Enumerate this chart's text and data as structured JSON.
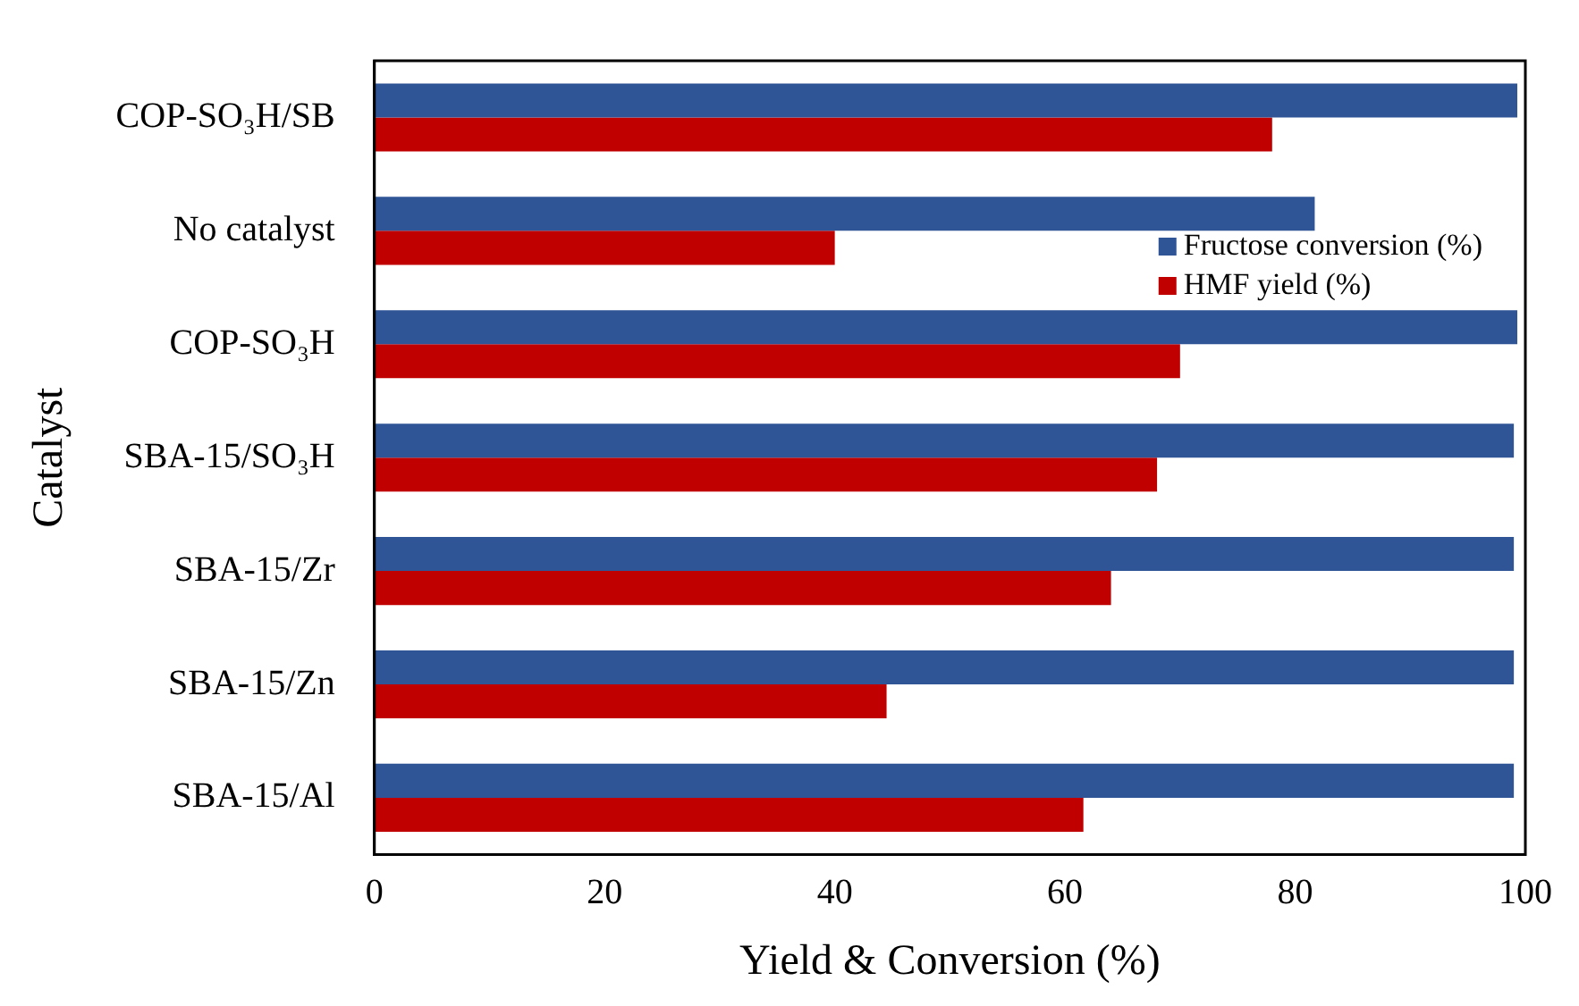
{
  "chart_data": {
    "type": "bar",
    "orientation": "horizontal",
    "xlabel": "Yield & Conversion (%)",
    "ylabel": "Catalyst",
    "categories": [
      "COP-SO₃H/SB",
      "No catalyst",
      "COP-SO₃H",
      "SBA-15/SO₃H",
      "SBA-15/Zr",
      "SBA-15/Zn",
      "SBA-15/Al"
    ],
    "series": [
      {
        "name": "Fructose conversion (%)",
        "color": "#2f5597",
        "values": [
          99.3,
          81.7,
          99.3,
          99,
          99,
          99,
          99
        ]
      },
      {
        "name": "HMF yield (%)",
        "color": "#c00000",
        "values": [
          78,
          40,
          70,
          68,
          64,
          44.5,
          61.6
        ]
      }
    ],
    "xlim": [
      0,
      100
    ],
    "xticks": [
      0,
      20,
      40,
      60,
      80,
      100
    ],
    "grid": false,
    "legend": "top right"
  }
}
